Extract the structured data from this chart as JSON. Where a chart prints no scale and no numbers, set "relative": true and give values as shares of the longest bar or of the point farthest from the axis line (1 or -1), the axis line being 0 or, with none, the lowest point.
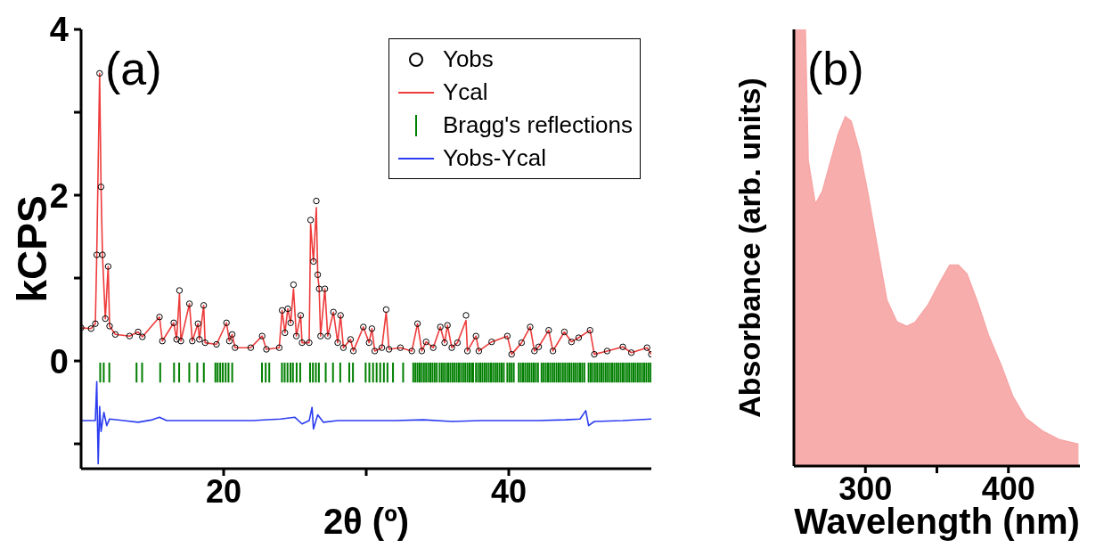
{
  "chart_data": [
    {
      "type": "line",
      "xlabel": "2θ (º)",
      "ylabel": "kCPS",
      "annotations": [
        "(a)"
      ],
      "xlim": [
        10,
        50
      ],
      "xticks": [
        20,
        {
          "value": 30,
          "label": null
        },
        40
      ],
      "ylim": [
        -1.3,
        4
      ],
      "yticks": [
        {
          "value": -1,
          "label": null
        },
        0,
        {
          "value": 1,
          "label": null
        },
        2,
        {
          "value": 3,
          "label": null
        },
        4
      ],
      "legend": "top right",
      "series": [
        {
          "name": "Yobs",
          "type": "scatter",
          "marker": "circle",
          "color": "#000000",
          "x": [
            10.0,
            10.7,
            11.0,
            11.1,
            11.3,
            11.4,
            11.5,
            11.7,
            11.9,
            12.0,
            12.4,
            13.4,
            14.0,
            14.3,
            15.5,
            15.7,
            16.5,
            16.7,
            16.9,
            17.0,
            17.6,
            17.8,
            18.2,
            18.3,
            18.6,
            18.7,
            19.5,
            20.2,
            20.4,
            20.6,
            20.8,
            21.9,
            22.7,
            23.0,
            23.9,
            24.1,
            24.3,
            24.5,
            24.7,
            24.9,
            25.1,
            25.4,
            25.5,
            26.0,
            26.1,
            26.3,
            26.5,
            26.6,
            26.7,
            26.8,
            27.1,
            27.3,
            27.7,
            28.0,
            28.2,
            28.4,
            28.9,
            29.1,
            29.8,
            30.2,
            30.4,
            30.6,
            31.1,
            31.4,
            31.6,
            32.4,
            33.2,
            33.6,
            33.9,
            34.2,
            34.7,
            35.2,
            35.5,
            35.7,
            36.0,
            36.4,
            37.0,
            37.1,
            37.7,
            37.9,
            38.8,
            39.9,
            40.2,
            40.9,
            41.5,
            41.8,
            42.1,
            42.8,
            43.1,
            43.9,
            44.4,
            44.9,
            45.7,
            46.0,
            46.9,
            48.0,
            48.6,
            49.7,
            50.0
          ],
          "values": [
            0.4,
            0.39,
            0.45,
            1.28,
            3.47,
            2.1,
            1.28,
            0.51,
            1.14,
            0.42,
            0.32,
            0.3,
            0.35,
            0.29,
            0.53,
            0.24,
            0.46,
            0.26,
            0.85,
            0.24,
            0.69,
            0.24,
            0.45,
            0.26,
            0.67,
            0.22,
            0.2,
            0.46,
            0.24,
            0.32,
            0.16,
            0.16,
            0.3,
            0.14,
            0.16,
            0.61,
            0.34,
            0.63,
            0.46,
            0.92,
            0.3,
            0.55,
            0.22,
            0.22,
            1.7,
            1.2,
            1.93,
            1.04,
            0.87,
            0.3,
            0.87,
            0.3,
            0.59,
            0.22,
            0.55,
            0.16,
            0.26,
            0.12,
            0.41,
            0.22,
            0.39,
            0.12,
            0.16,
            0.62,
            0.14,
            0.16,
            0.12,
            0.45,
            0.12,
            0.23,
            0.16,
            0.41,
            0.22,
            0.43,
            0.16,
            0.22,
            0.55,
            0.12,
            0.3,
            0.12,
            0.23,
            0.3,
            0.08,
            0.22,
            0.41,
            0.12,
            0.17,
            0.37,
            0.12,
            0.35,
            0.23,
            0.28,
            0.37,
            0.08,
            0.12,
            0.17,
            0.1,
            0.16,
            0.08
          ]
        },
        {
          "name": "Ycal",
          "color": "#ee3b3b",
          "x": [
            10.0,
            10.7,
            11.0,
            11.1,
            11.3,
            11.4,
            11.5,
            11.7,
            11.9,
            12.0,
            12.4,
            13.4,
            14.0,
            14.3,
            15.5,
            15.7,
            16.5,
            16.7,
            16.9,
            17.0,
            17.6,
            17.8,
            18.2,
            18.3,
            18.6,
            18.7,
            19.5,
            20.2,
            20.4,
            20.6,
            20.8,
            21.9,
            22.7,
            23.0,
            23.9,
            24.1,
            24.3,
            24.5,
            24.7,
            24.9,
            25.1,
            25.4,
            25.5,
            26.0,
            26.1,
            26.3,
            26.5,
            26.6,
            26.7,
            26.8,
            27.1,
            27.3,
            27.7,
            28.0,
            28.2,
            28.4,
            28.9,
            29.1,
            29.8,
            30.2,
            30.4,
            30.6,
            31.1,
            31.4,
            31.6,
            32.4,
            33.2,
            33.6,
            33.9,
            34.2,
            34.7,
            35.2,
            35.5,
            35.7,
            36.0,
            36.4,
            37.0,
            37.1,
            37.7,
            37.9,
            38.8,
            39.9,
            40.2,
            40.9,
            41.5,
            41.8,
            42.1,
            42.8,
            43.1,
            43.9,
            44.4,
            44.9,
            45.7,
            46.0,
            46.9,
            48.0,
            48.6,
            49.7,
            50.0
          ],
          "values": [
            0.4,
            0.39,
            0.45,
            1.28,
            3.47,
            2.1,
            1.28,
            0.51,
            1.14,
            0.42,
            0.32,
            0.3,
            0.35,
            0.29,
            0.53,
            0.24,
            0.46,
            0.26,
            0.81,
            0.24,
            0.69,
            0.24,
            0.45,
            0.26,
            0.67,
            0.22,
            0.2,
            0.46,
            0.24,
            0.32,
            0.16,
            0.16,
            0.3,
            0.14,
            0.16,
            0.61,
            0.34,
            0.63,
            0.46,
            0.87,
            0.3,
            0.55,
            0.22,
            0.22,
            1.65,
            1.2,
            1.85,
            1.04,
            0.87,
            0.3,
            0.87,
            0.3,
            0.59,
            0.22,
            0.55,
            0.16,
            0.26,
            0.12,
            0.41,
            0.22,
            0.39,
            0.12,
            0.16,
            0.59,
            0.14,
            0.16,
            0.12,
            0.45,
            0.12,
            0.23,
            0.16,
            0.41,
            0.22,
            0.43,
            0.16,
            0.22,
            0.49,
            0.12,
            0.3,
            0.12,
            0.23,
            0.3,
            0.08,
            0.22,
            0.41,
            0.12,
            0.17,
            0.37,
            0.12,
            0.35,
            0.23,
            0.28,
            0.37,
            0.08,
            0.12,
            0.17,
            0.1,
            0.16,
            0.08
          ]
        },
        {
          "name": "Bragg's reflections",
          "type": "bar",
          "base": [
            -0.26,
            -0.26,
            -0.26,
            -0.26,
            -0.26,
            -0.26,
            -0.26,
            -0.26,
            -0.26,
            -0.26,
            -0.26,
            -0.26,
            -0.26,
            -0.26,
            -0.26,
            -0.26,
            -0.26,
            -0.26,
            -0.26,
            -0.26,
            -0.26,
            -0.26,
            -0.26,
            -0.26,
            -0.26,
            -0.26,
            -0.26,
            -0.26,
            -0.26,
            -0.26,
            -0.26,
            -0.26,
            -0.26,
            -0.26,
            -0.26,
            -0.26,
            -0.26,
            -0.26,
            -0.26,
            -0.26,
            -0.26,
            -0.26,
            -0.26,
            -0.26,
            -0.26,
            -0.26,
            -0.26,
            -0.26,
            -0.26,
            -0.26,
            -0.26,
            -0.26,
            -0.26,
            -0.26,
            -0.26,
            -0.26,
            -0.26,
            -0.26,
            -0.26,
            -0.26,
            -0.26,
            -0.26,
            -0.26,
            -0.26,
            -0.26,
            -0.26,
            -0.26,
            -0.26,
            -0.26,
            -0.26,
            -0.26,
            -0.26,
            -0.26,
            -0.26,
            -0.26,
            -0.26,
            -0.26,
            -0.26,
            -0.26,
            -0.26,
            -0.26,
            -0.26,
            -0.26,
            -0.26,
            -0.26,
            -0.26,
            -0.26,
            -0.26,
            -0.26,
            -0.26,
            -0.26,
            -0.26,
            -0.26,
            -0.26,
            -0.26,
            -0.26,
            -0.26,
            -0.26,
            -0.26,
            -0.26,
            -0.26,
            -0.26,
            -0.26,
            -0.26,
            -0.26,
            -0.26,
            -0.26,
            -0.26,
            -0.26,
            -0.26,
            -0.26,
            -0.26,
            -0.26,
            -0.26,
            -0.26,
            -0.26,
            -0.26,
            -0.26,
            -0.26,
            -0.26,
            -0.26,
            -0.26,
            -0.26,
            -0.26,
            -0.26,
            -0.26,
            -0.26,
            -0.26,
            -0.26,
            -0.26,
            -0.26,
            -0.26,
            -0.26,
            -0.26,
            -0.26,
            -0.26,
            -0.26,
            -0.26,
            -0.26,
            -0.26,
            -0.26,
            -0.26,
            -0.26,
            -0.26,
            -0.26,
            -0.26,
            -0.26,
            -0.26,
            -0.26,
            -0.26,
            -0.26,
            -0.26,
            -0.26,
            -0.26
          ],
          "color": "#007f00",
          "x": [
            11.34,
            11.59,
            11.98,
            13.89,
            14.28,
            15.55,
            16.52,
            16.88,
            17.59,
            18.15,
            18.61,
            19.42,
            19.58,
            19.76,
            19.94,
            20.14,
            20.34,
            20.6,
            22.69,
            22.95,
            23.2,
            24.09,
            24.28,
            24.48,
            24.69,
            24.86,
            25.12,
            25.37,
            26.06,
            26.26,
            26.47,
            26.68,
            27.16,
            27.67,
            28.18,
            28.81,
            29.07,
            29.96,
            30.22,
            30.48,
            30.73,
            30.98,
            31.24,
            31.49,
            31.88,
            32.59,
            33.3,
            33.45,
            33.6,
            33.75,
            33.9,
            34.05,
            34.2,
            34.35,
            34.5,
            34.65,
            34.8,
            34.95,
            35.15,
            35.3,
            35.45,
            35.6,
            35.75,
            35.9,
            36.05,
            36.2,
            36.35,
            36.5,
            36.65,
            36.8,
            36.95,
            37.1,
            37.25,
            37.4,
            37.5,
            37.7,
            37.85,
            38.0,
            38.15,
            38.3,
            38.45,
            38.6,
            38.75,
            38.9,
            39.05,
            39.2,
            39.35,
            39.5,
            39.65,
            39.9,
            40.05,
            40.2,
            40.35,
            40.7,
            40.85,
            41.0,
            41.15,
            41.3,
            41.45,
            41.6,
            41.75,
            41.9,
            42.05,
            42.3,
            42.45,
            42.6,
            42.75,
            42.9,
            43.05,
            43.2,
            43.35,
            43.5,
            43.65,
            43.8,
            43.95,
            44.1,
            44.25,
            44.4,
            44.55,
            44.7,
            44.85,
            45.0,
            45.15,
            45.3,
            45.6,
            45.75,
            45.9,
            46.05,
            46.2,
            46.35,
            46.5,
            46.65,
            46.8,
            46.95,
            47.1,
            47.25,
            47.4,
            47.55,
            47.7,
            47.85,
            48.0,
            48.15,
            48.3,
            48.45,
            48.6,
            48.75,
            48.9,
            49.05,
            49.2,
            49.35,
            49.5,
            49.65,
            49.8,
            49.95
          ],
          "values": [
            0.24,
            0.24,
            0.24,
            0.24,
            0.24,
            0.24,
            0.24,
            0.24,
            0.24,
            0.24,
            0.24,
            0.24,
            0.24,
            0.24,
            0.24,
            0.24,
            0.24,
            0.24,
            0.24,
            0.24,
            0.24,
            0.24,
            0.24,
            0.24,
            0.24,
            0.24,
            0.24,
            0.24,
            0.24,
            0.24,
            0.24,
            0.24,
            0.24,
            0.24,
            0.24,
            0.24,
            0.24,
            0.24,
            0.24,
            0.24,
            0.24,
            0.24,
            0.24,
            0.24,
            0.24,
            0.24,
            0.24,
            0.24,
            0.24,
            0.24,
            0.24,
            0.24,
            0.24,
            0.24,
            0.24,
            0.24,
            0.24,
            0.24,
            0.24,
            0.24,
            0.24,
            0.24,
            0.24,
            0.24,
            0.24,
            0.24,
            0.24,
            0.24,
            0.24,
            0.24,
            0.24,
            0.24,
            0.24,
            0.24,
            0.24,
            0.24,
            0.24,
            0.24,
            0.24,
            0.24,
            0.24,
            0.24,
            0.24,
            0.24,
            0.24,
            0.24,
            0.24,
            0.24,
            0.24,
            0.24,
            0.24,
            0.24,
            0.24,
            0.24,
            0.24,
            0.24,
            0.24,
            0.24,
            0.24,
            0.24,
            0.24,
            0.24,
            0.24,
            0.24,
            0.24,
            0.24,
            0.24,
            0.24,
            0.24,
            0.24,
            0.24,
            0.24,
            0.24,
            0.24,
            0.24,
            0.24,
            0.24,
            0.24,
            0.24,
            0.24,
            0.24,
            0.24,
            0.24,
            0.24,
            0.24,
            0.24,
            0.24,
            0.24,
            0.24,
            0.24,
            0.24,
            0.24,
            0.24,
            0.24,
            0.24,
            0.24,
            0.24,
            0.24,
            0.24,
            0.24,
            0.24,
            0.24,
            0.24,
            0.24,
            0.24,
            0.24,
            0.24,
            0.24,
            0.24,
            0.24,
            0.24,
            0.24,
            0.24,
            0.24
          ]
        },
        {
          "name": "Yobs-Ycal",
          "color": "#2b3cf0",
          "x": [
            10,
            11.0,
            11.1,
            11.2,
            11.3,
            11.4,
            11.6,
            11.8,
            12.0,
            13.0,
            14.0,
            15.0,
            15.5,
            16.0,
            18.0,
            20.0,
            22.0,
            24.0,
            25.0,
            25.5,
            26.0,
            26.2,
            26.3,
            26.6,
            27.0,
            28.0,
            30,
            32,
            34,
            36,
            38,
            40,
            42,
            44,
            45.0,
            45.4,
            45.6,
            46,
            48,
            50
          ],
          "values": [
            -0.72,
            -0.72,
            -0.25,
            -1.24,
            -0.55,
            -0.85,
            -0.62,
            -0.78,
            -0.7,
            -0.72,
            -0.74,
            -0.71,
            -0.68,
            -0.72,
            -0.72,
            -0.72,
            -0.72,
            -0.7,
            -0.68,
            -0.76,
            -0.72,
            -0.56,
            -0.82,
            -0.65,
            -0.74,
            -0.72,
            -0.72,
            -0.72,
            -0.71,
            -0.73,
            -0.72,
            -0.72,
            -0.72,
            -0.71,
            -0.7,
            -0.6,
            -0.78,
            -0.73,
            -0.72,
            -0.7
          ]
        }
      ]
    },
    {
      "type": "area",
      "relative": true,
      "xlabel": "Wavelength (nm)",
      "ylabel": "Absorbance (arb. units)",
      "annotations": [
        "(b)"
      ],
      "xlim": [
        250,
        450
      ],
      "xticks": [
        300,
        {
          "value": 350,
          "label": null
        },
        400
      ],
      "x": [
        250,
        258,
        260,
        265,
        270,
        275,
        281,
        286,
        290,
        296,
        302,
        309,
        315,
        322,
        329,
        335,
        344,
        352,
        359,
        365,
        371,
        379,
        386,
        395,
        403,
        412,
        424,
        436,
        449
      ],
      "series": [
        {
          "color": "#f7a6a6",
          "values": [
            1.0,
            1.0,
            0.7,
            0.6,
            0.63,
            0.69,
            0.76,
            0.8,
            0.79,
            0.72,
            0.62,
            0.49,
            0.38,
            0.33,
            0.32,
            0.33,
            0.37,
            0.42,
            0.46,
            0.46,
            0.44,
            0.37,
            0.3,
            0.23,
            0.16,
            0.11,
            0.08,
            0.06,
            0.05
          ]
        }
      ]
    }
  ]
}
